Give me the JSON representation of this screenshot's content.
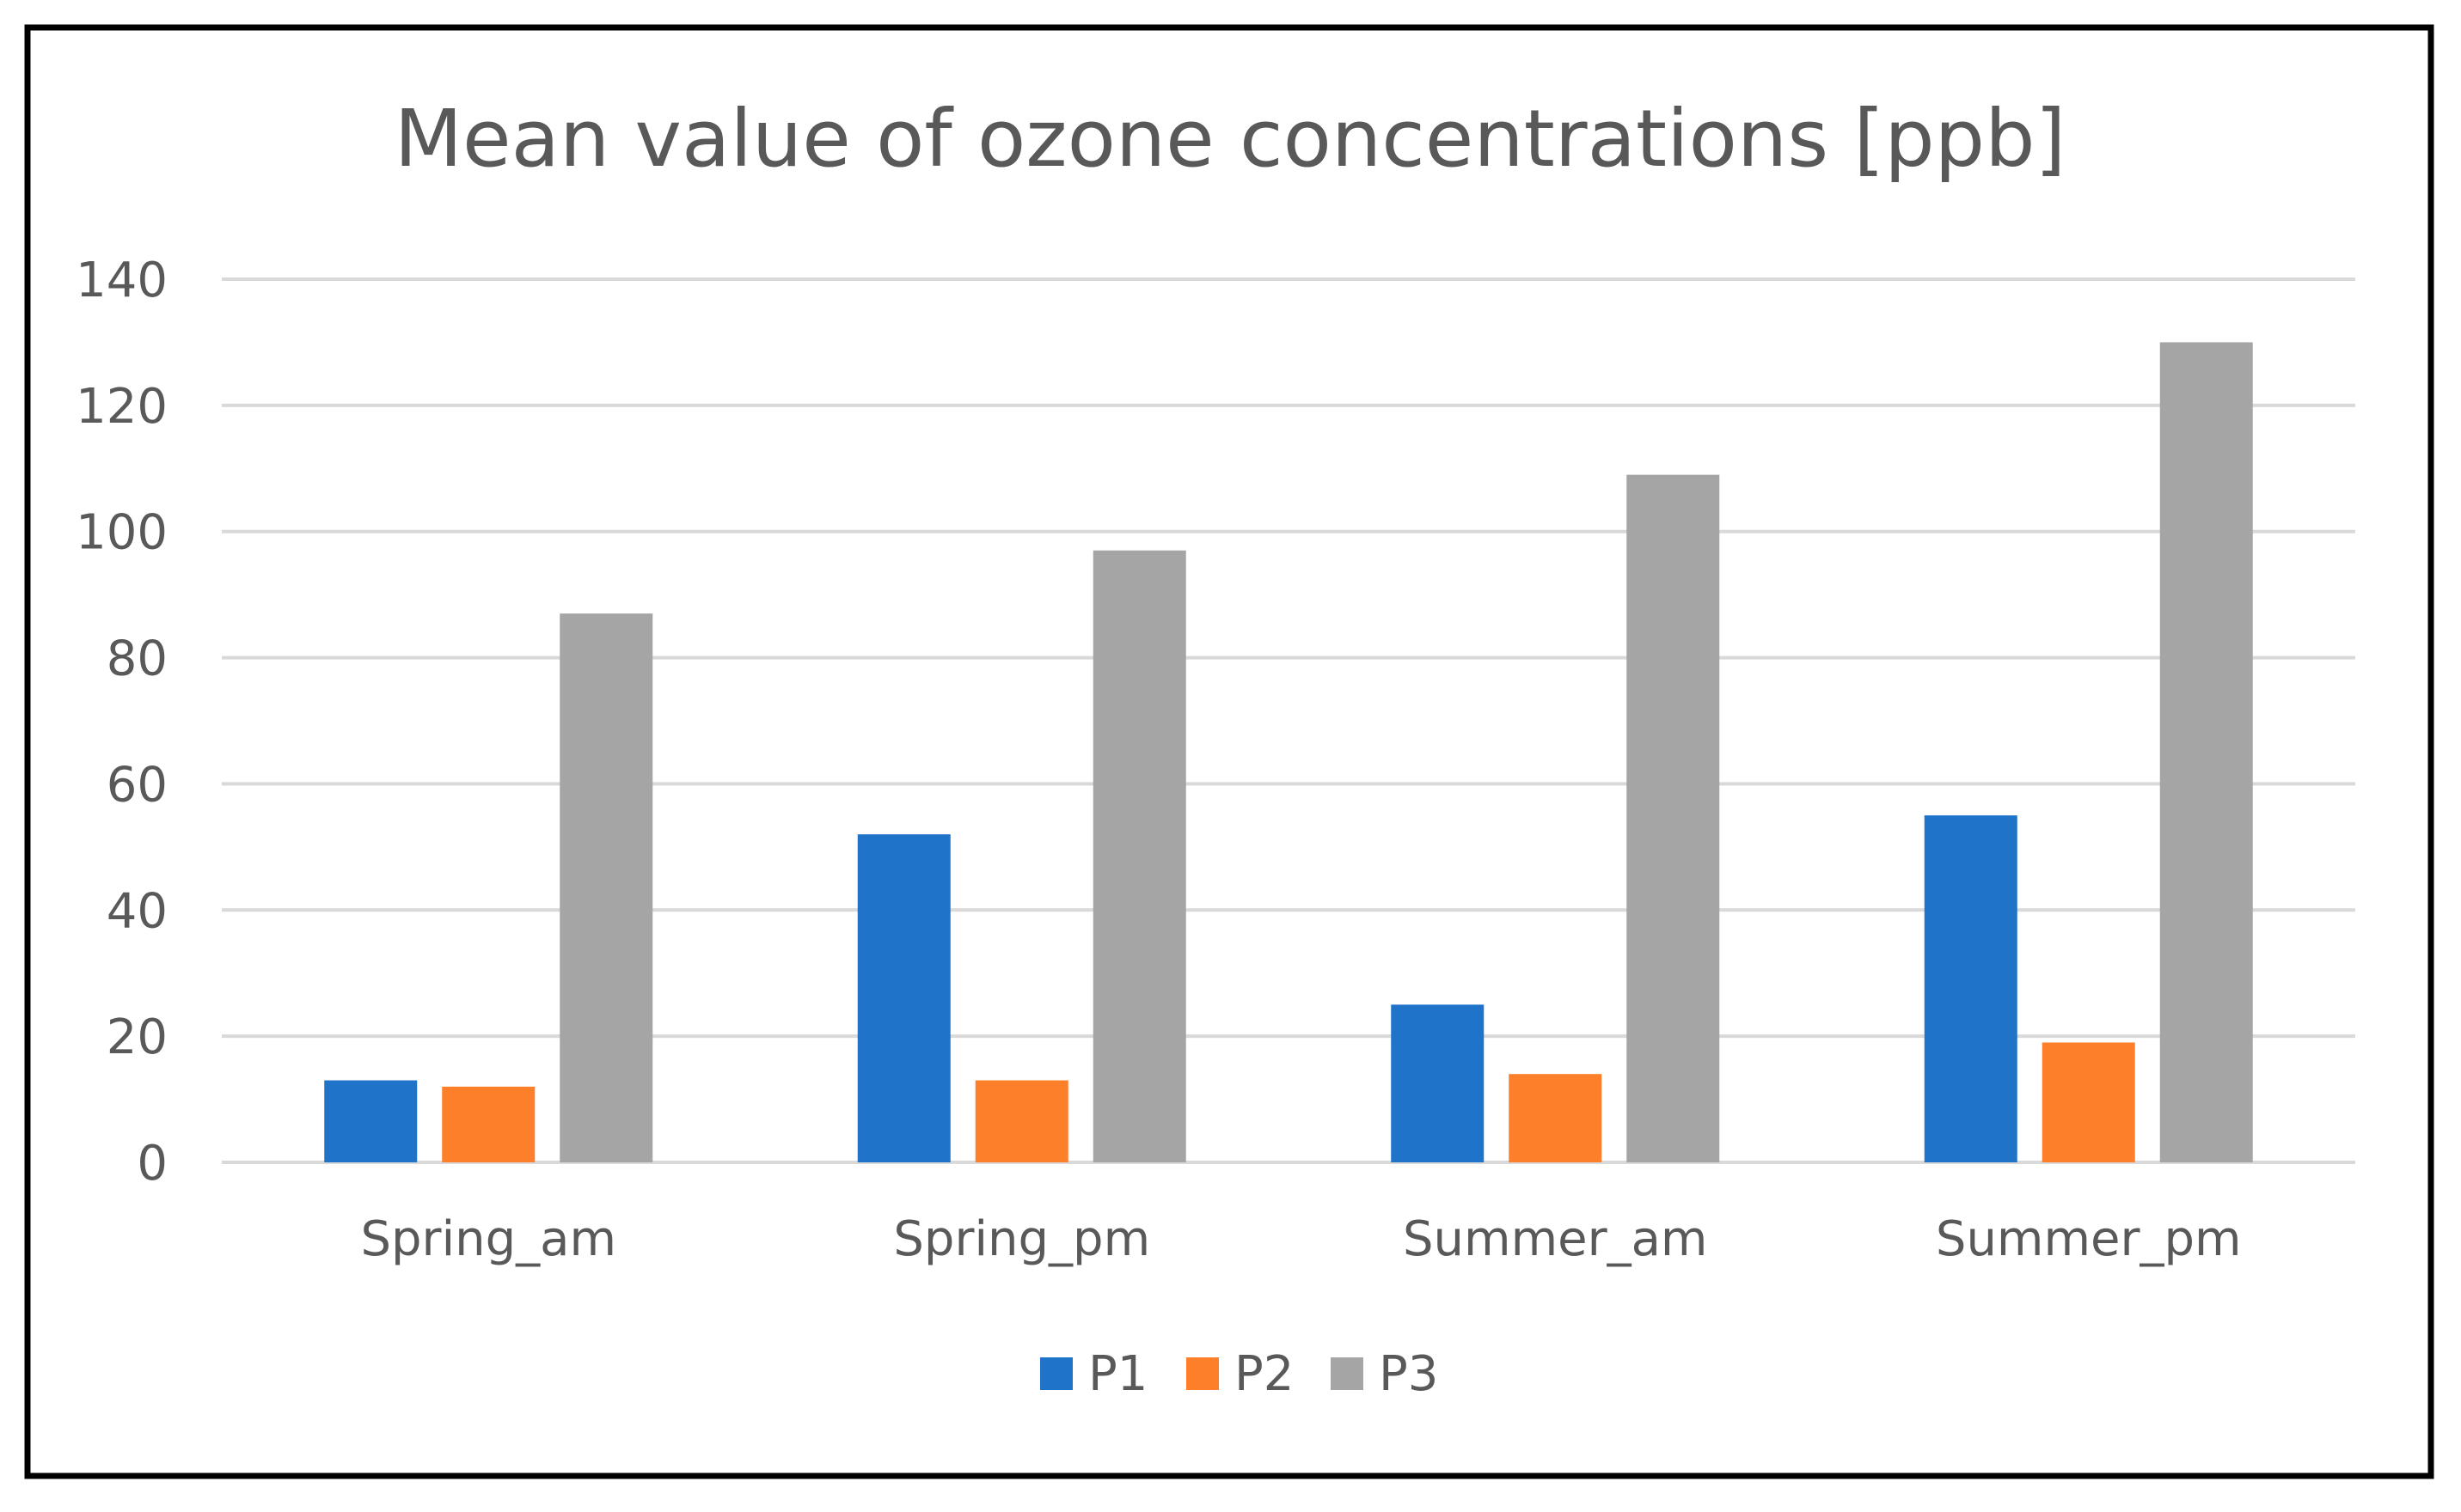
{
  "chart_data": {
    "type": "bar",
    "title": "Mean value of ozone concentrations [ppb]",
    "xlabel": "",
    "ylabel": "",
    "categories": [
      "Spring_am",
      "Spring_pm",
      "Summer_am",
      "Summer_pm"
    ],
    "series": [
      {
        "name": "P1",
        "color": "#1f73c8",
        "values": [
          13,
          52,
          25,
          55
        ]
      },
      {
        "name": "P2",
        "color": "#fd7f2a",
        "values": [
          12,
          13,
          14,
          19
        ]
      },
      {
        "name": "P3",
        "color": "#a5a5a5",
        "values": [
          87,
          97,
          109,
          130
        ]
      }
    ],
    "ylim": [
      0,
      140
    ],
    "yticks": [
      "0",
      "20",
      "40",
      "60",
      "80",
      "100",
      "120",
      "140"
    ],
    "grid": true,
    "legend_position": "bottom-center"
  },
  "colors": {
    "frame": "#000000",
    "gridline": "#d9d9d9",
    "text": "#595959",
    "title": "#595959"
  }
}
